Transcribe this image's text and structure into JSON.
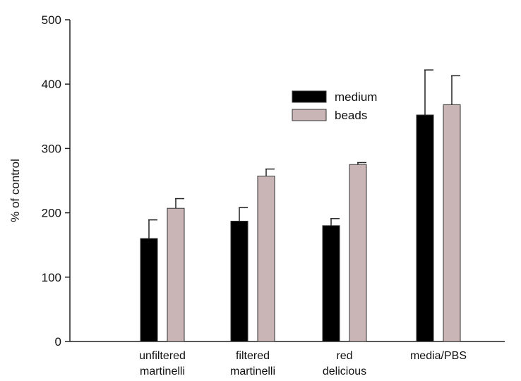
{
  "chart_data": {
    "type": "bar",
    "title": "",
    "xlabel": "",
    "ylabel": "% of control",
    "ylim": [
      0,
      500
    ],
    "yticks": [
      0,
      100,
      200,
      300,
      400,
      500
    ],
    "grid": false,
    "legend_position": "top-right",
    "categories": [
      [
        "unfiltered",
        "martinelli"
      ],
      [
        "filtered",
        "martinelli"
      ],
      [
        "red",
        "delicious"
      ],
      [
        "media/PBS"
      ]
    ],
    "series": [
      {
        "name": "medium",
        "color": "#000000",
        "values": [
          160,
          187,
          180,
          352
        ],
        "errors": [
          29,
          21,
          11,
          70
        ]
      },
      {
        "name": "beads",
        "color": "#c9b5b5",
        "values": [
          207,
          257,
          275,
          368
        ],
        "errors": [
          15,
          11,
          3,
          45
        ]
      }
    ]
  }
}
